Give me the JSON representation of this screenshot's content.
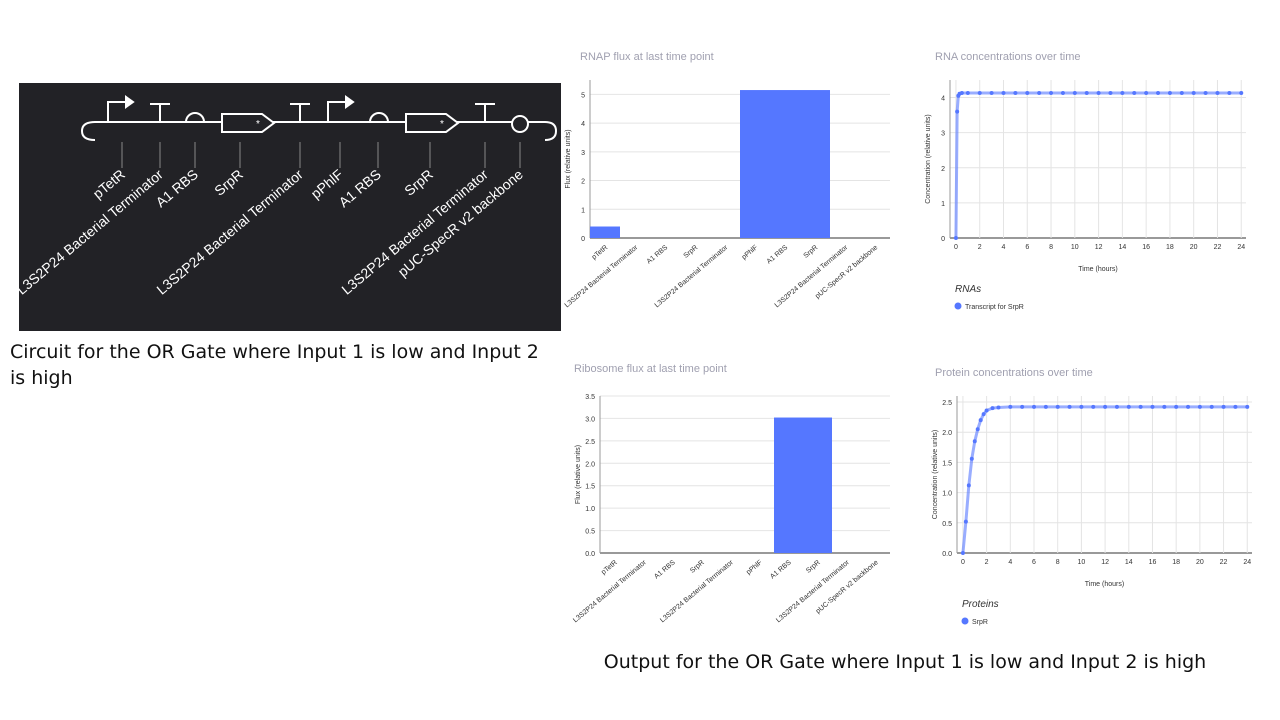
{
  "circuit": {
    "parts": [
      "pTetR",
      "L3S2P24 Bacterial Terminator",
      "A1 RBS",
      "SrpR",
      "L3S2P24 Bacterial Terminator",
      "pPhlF",
      "A1 RBS",
      "SrpR",
      "L3S2P24 Bacterial Terminator",
      "pUC-SpecR v2 backbone"
    ],
    "caption": "Circuit for the OR Gate where Input 1 is low and Input 2 is high"
  },
  "output_caption": "Output for the OR Gate where Input 1 is low and Input 2 is high",
  "chart_data": [
    {
      "type": "bar",
      "title": "RNAP flux at last time point",
      "y_label": "Flux (relative units)",
      "categories": [
        "pTetR",
        "L3S2P24 Bacterial Terminator",
        "A1 RBS",
        "SrpR",
        "L3S2P24 Bacterial Terminator",
        "pPhlF",
        "A1 RBS",
        "SrpR",
        "L3S2P24 Bacterial Terminator",
        "pUC-SpecR v2 backbone"
      ],
      "values": [
        0.4,
        0,
        0,
        0,
        0,
        5.15,
        5.15,
        5.15,
        0,
        0
      ],
      "color": "#5577ff",
      "ylim": [
        0,
        5.5
      ],
      "yticks": [
        0,
        1,
        2,
        3,
        4,
        5
      ],
      "grid": true
    },
    {
      "type": "line",
      "title": "RNA concentrations over time",
      "y_label": "Concentration (relative units)",
      "x_label": "Time (hours)",
      "legend_title": "RNAs",
      "x": [
        0,
        0.1,
        0.2,
        0.3,
        0.5,
        1,
        2,
        3,
        4,
        5,
        6,
        7,
        8,
        9,
        10,
        11,
        12,
        13,
        14,
        15,
        16,
        17,
        18,
        19,
        20,
        21,
        22,
        23,
        24
      ],
      "series": [
        {
          "name": "Transcript for SrpR",
          "color": "#5577ff",
          "values": [
            0,
            3.6,
            4.05,
            4.11,
            4.13,
            4.13,
            4.13,
            4.13,
            4.13,
            4.13,
            4.13,
            4.13,
            4.13,
            4.13,
            4.13,
            4.13,
            4.13,
            4.13,
            4.13,
            4.13,
            4.13,
            4.13,
            4.13,
            4.13,
            4.13,
            4.13,
            4.13,
            4.13,
            4.13
          ]
        }
      ],
      "xlim": [
        -0.5,
        24.4
      ],
      "xticks": [
        0,
        2,
        4,
        6,
        8,
        10,
        12,
        14,
        16,
        18,
        20,
        22,
        24
      ],
      "ylim": [
        0,
        4.5
      ],
      "yticks": [
        0,
        1,
        2,
        3,
        4
      ],
      "grid": true
    },
    {
      "type": "bar",
      "title": "Ribosome flux at last time point",
      "y_label": "Flux (relative units)",
      "categories": [
        "pTetR",
        "L3S2P24 Bacterial Terminator",
        "A1 RBS",
        "SrpR",
        "L3S2P24 Bacterial Terminator",
        "pPhlF",
        "A1 RBS",
        "SrpR",
        "L3S2P24 Bacterial Terminator",
        "pUC-SpecR v2 backbone"
      ],
      "values": [
        0,
        0,
        0,
        0,
        0,
        0,
        3.02,
        3.02,
        0,
        0
      ],
      "color": "#5577ff",
      "ylim": [
        0,
        3.5
      ],
      "yticks": [
        {
          "value": 0,
          "label": "0.0"
        },
        {
          "value": 0.5,
          "label": "0.5"
        },
        {
          "value": 1,
          "label": "1.0"
        },
        {
          "value": 1.5,
          "label": "1.5"
        },
        {
          "value": 2,
          "label": "2.0"
        },
        {
          "value": 2.5,
          "label": "2.5"
        },
        {
          "value": 3,
          "label": "3.0"
        },
        {
          "value": 3.5,
          "label": "3.5"
        }
      ],
      "grid": true
    },
    {
      "type": "line",
      "title": "Protein concentrations over time",
      "y_label": "Concentration (relative units)",
      "x_label": "Time (hours)",
      "legend_title": "Proteins",
      "x": [
        0,
        0.25,
        0.5,
        0.75,
        1,
        1.25,
        1.5,
        1.75,
        2,
        2.5,
        3,
        4,
        5,
        6,
        7,
        8,
        9,
        10,
        11,
        12,
        13,
        14,
        15,
        16,
        17,
        18,
        19,
        20,
        21,
        22,
        23,
        24
      ],
      "series": [
        {
          "name": "SrpR",
          "color": "#5577ff",
          "values": [
            0,
            0.52,
            1.12,
            1.56,
            1.85,
            2.05,
            2.2,
            2.3,
            2.36,
            2.4,
            2.41,
            2.42,
            2.42,
            2.42,
            2.42,
            2.42,
            2.42,
            2.42,
            2.42,
            2.42,
            2.42,
            2.42,
            2.42,
            2.42,
            2.42,
            2.42,
            2.42,
            2.42,
            2.42,
            2.42,
            2.42,
            2.42
          ]
        }
      ],
      "xlim": [
        -0.5,
        24.4
      ],
      "xticks": [
        0,
        2,
        4,
        6,
        8,
        10,
        12,
        14,
        16,
        18,
        20,
        22,
        24
      ],
      "ylim": [
        0,
        2.6
      ],
      "yticks": [
        {
          "value": 0,
          "label": "0.0"
        },
        {
          "value": 0.5,
          "label": "0.5"
        },
        {
          "value": 1,
          "label": "1.0"
        },
        {
          "value": 1.5,
          "label": "1.5"
        },
        {
          "value": 2,
          "label": "2.0"
        },
        {
          "value": 2.5,
          "label": "2.5"
        }
      ],
      "grid": true
    }
  ]
}
